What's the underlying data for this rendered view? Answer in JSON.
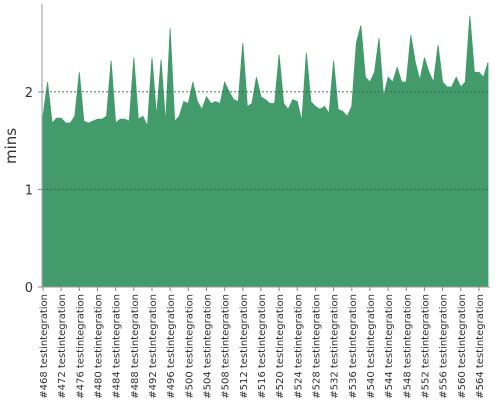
{
  "chart_data": {
    "type": "area",
    "ylabel": "mins",
    "color": "#439b6c",
    "grid": true,
    "ylim": [
      0,
      2.9
    ],
    "yticks": [
      0,
      1,
      2
    ],
    "categories": [
      "#468 testintegration",
      null,
      null,
      null,
      "#472 testintegration",
      null,
      null,
      null,
      "#476 testintegration",
      null,
      null,
      null,
      "#480 testintegration",
      null,
      null,
      null,
      "#484 testintegration",
      null,
      null,
      null,
      "#488 testintegration",
      null,
      null,
      null,
      "#492 testintegration",
      null,
      null,
      null,
      "#496 testintegration",
      null,
      null,
      null,
      "#500 testintegration",
      null,
      null,
      null,
      "#504 testintegration",
      null,
      null,
      null,
      "#508 testintegration",
      null,
      null,
      null,
      "#512 testintegration",
      null,
      null,
      null,
      "#516 testintegration",
      null,
      null,
      null,
      "#520 testintegration",
      null,
      null,
      null,
      "#524 testintegration",
      null,
      null,
      null,
      "#528 testintegration",
      null,
      null,
      null,
      "#532 testintegration",
      null,
      null,
      null,
      "#536 testintegration",
      null,
      null,
      null,
      "#540 testintegration",
      null,
      null,
      null,
      "#544 testintegration",
      null,
      null,
      null,
      "#548 testintegration",
      null,
      null,
      null,
      "#552 testintegration",
      null,
      null,
      null,
      "#556 testintegration",
      null,
      null,
      null,
      "#560 testintegration",
      null,
      null,
      null,
      "#564 testintegration",
      null,
      null
    ],
    "values": [
      1.75,
      2.1,
      1.68,
      1.73,
      1.73,
      1.68,
      1.68,
      1.75,
      2.2,
      1.7,
      1.68,
      1.7,
      1.72,
      1.72,
      1.75,
      2.32,
      1.68,
      1.72,
      1.72,
      1.7,
      2.35,
      1.72,
      1.75,
      1.65,
      2.35,
      1.75,
      2.33,
      1.68,
      2.65,
      1.7,
      1.75,
      1.9,
      1.88,
      2.1,
      1.9,
      1.82,
      1.95,
      1.88,
      1.9,
      1.88,
      2.1,
      2.0,
      1.92,
      1.9,
      2.5,
      1.85,
      1.88,
      2.15,
      1.95,
      1.92,
      1.88,
      1.88,
      2.38,
      1.88,
      1.82,
      1.92,
      1.9,
      1.7,
      2.4,
      1.9,
      1.85,
      1.82,
      1.85,
      1.78,
      2.32,
      1.82,
      1.8,
      1.75,
      1.85,
      2.5,
      2.68,
      2.15,
      2.1,
      2.2,
      2.55,
      1.95,
      2.15,
      2.1,
      2.25,
      2.1,
      2.1,
      2.58,
      2.3,
      2.12,
      2.35,
      2.2,
      2.1,
      2.48,
      2.1,
      2.05,
      2.05,
      2.15,
      2.05,
      2.1,
      2.78,
      2.2,
      2.2,
      2.15,
      2.3
    ]
  }
}
